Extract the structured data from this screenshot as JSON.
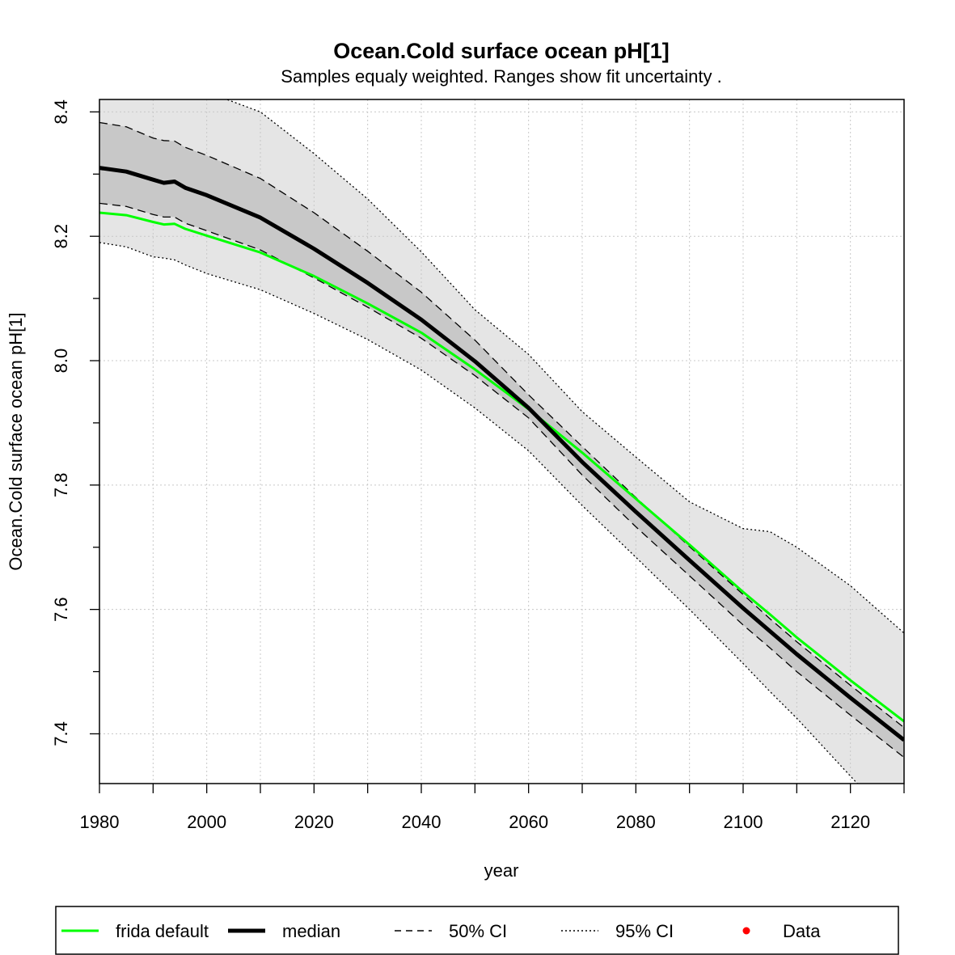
{
  "chart_data": {
    "type": "line",
    "title": "Ocean.Cold surface ocean pH[1]",
    "subtitle": "Samples equaly weighted. Ranges show  fit uncertainty .",
    "xlabel": "year",
    "ylabel": "Ocean.Cold surface ocean pH[1]",
    "xlim": [
      1980,
      2130
    ],
    "ylim": [
      7.32,
      8.42
    ],
    "x_ticks": [
      1980,
      2000,
      2020,
      2040,
      2060,
      2080,
      2100,
      2120
    ],
    "x_tick_labels": [
      "1980",
      "2000",
      "2020",
      "2040",
      "2060",
      "2080",
      "2100",
      "2120"
    ],
    "y_ticks": [
      7.4,
      7.6,
      7.8,
      8.0,
      8.2,
      8.4
    ],
    "y_tick_labels": [
      "7.4",
      "7.6",
      "7.8",
      "8.0",
      "8.2",
      "8.4"
    ],
    "grid": true,
    "legend_position": "bottom",
    "colors": {
      "frida_default": "#00ff00",
      "median": "#000000",
      "ci50_fill": "#c8c8c8",
      "ci95_fill": "#e5e5e5",
      "data": "#ff0000"
    },
    "x": [
      1980,
      1985,
      1990,
      1992,
      1994,
      1996,
      2000,
      2010,
      2020,
      2030,
      2040,
      2050,
      2060,
      2070,
      2080,
      2090,
      2100,
      2105,
      2110,
      2120,
      2130
    ],
    "series": [
      {
        "name": "frida default",
        "key": "frida",
        "values": [
          8.238,
          8.234,
          8.223,
          8.219,
          8.22,
          8.212,
          8.201,
          8.174,
          8.136,
          8.092,
          8.045,
          7.986,
          7.922,
          7.852,
          7.778,
          7.704,
          7.628,
          7.592,
          7.555,
          7.486,
          7.42
        ]
      },
      {
        "name": "median",
        "key": "median",
        "values": [
          8.31,
          8.304,
          8.291,
          8.286,
          8.288,
          8.278,
          8.266,
          8.23,
          8.18,
          8.125,
          8.066,
          7.999,
          7.924,
          7.837,
          7.757,
          7.679,
          7.602,
          7.565,
          7.528,
          7.458,
          7.39
        ]
      }
    ],
    "bands": {
      "ci50_upper": [
        8.383,
        8.376,
        8.358,
        8.354,
        8.353,
        8.343,
        8.33,
        8.293,
        8.238,
        8.176,
        8.11,
        8.033,
        7.945,
        7.862,
        7.78,
        7.701,
        7.624,
        7.585,
        7.548,
        7.478,
        7.41
      ],
      "ci50_lower": [
        8.253,
        8.248,
        8.235,
        8.231,
        8.231,
        8.221,
        8.209,
        8.178,
        8.133,
        8.086,
        8.036,
        7.976,
        7.908,
        7.816,
        7.733,
        7.654,
        7.575,
        7.538,
        7.5,
        7.43,
        7.362
      ],
      "ci95_upper": [
        8.432,
        8.432,
        8.432,
        8.432,
        8.432,
        8.432,
        8.432,
        8.4,
        8.333,
        8.26,
        8.175,
        8.082,
        8.01,
        7.918,
        7.845,
        7.773,
        7.73,
        7.725,
        7.7,
        7.638,
        7.562
      ],
      "ci95_lower": [
        8.19,
        8.183,
        8.167,
        8.165,
        8.162,
        8.154,
        8.14,
        8.114,
        8.076,
        8.034,
        7.985,
        7.924,
        7.855,
        7.767,
        7.684,
        7.6,
        7.513,
        7.468,
        7.425,
        7.332,
        7.24
      ]
    },
    "legend": [
      {
        "label": "frida default",
        "style": "green-line"
      },
      {
        "label": "median",
        "style": "thick-black-line"
      },
      {
        "label": "50% CI",
        "style": "dashed-line"
      },
      {
        "label": "95% CI",
        "style": "dotted-line"
      },
      {
        "label": "Data",
        "style": "red-point"
      }
    ]
  }
}
